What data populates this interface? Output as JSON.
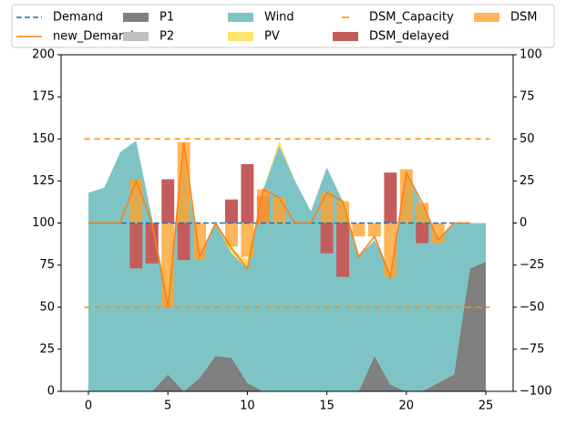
{
  "chart_data": {
    "type": "combo",
    "x": [
      0,
      1,
      2,
      3,
      4,
      5,
      6,
      7,
      8,
      9,
      10,
      11,
      12,
      13,
      14,
      15,
      16,
      17,
      18,
      19,
      20,
      21,
      22,
      23,
      24,
      25
    ],
    "xlim": [
      -1.72,
      26.72
    ],
    "xticks": [
      0,
      5,
      10,
      15,
      20,
      25
    ],
    "ylim": [
      0,
      200
    ],
    "yticks": [
      0,
      25,
      50,
      75,
      100,
      125,
      150,
      175,
      200
    ],
    "y2lim": [
      -100,
      100
    ],
    "y2ticks": [
      {
        "value": -100,
        "label": "−100"
      },
      {
        "value": -75,
        "label": "−75"
      },
      {
        "value": -50,
        "label": "−50"
      },
      {
        "value": -25,
        "label": "−25"
      },
      0,
      25,
      50,
      75,
      100
    ],
    "legend": "top",
    "series": [
      {
        "name": "Demand",
        "type": "line",
        "dashed": true,
        "color": "#1f77b4",
        "values": [
          100,
          100,
          100,
          100,
          100,
          100,
          100,
          100,
          100,
          100,
          100,
          100,
          100,
          100,
          100,
          100,
          100,
          100,
          100,
          100,
          100,
          100,
          100,
          100,
          100,
          null
        ]
      },
      {
        "name": "new_Demand",
        "type": "line",
        "color": "#ff7f0e",
        "values": [
          100,
          100,
          100,
          125,
          100,
          50,
          148,
          80,
          100,
          85,
          73,
          120,
          115,
          100,
          100,
          118,
          113,
          80,
          92,
          68,
          130,
          112,
          90,
          100,
          100,
          null
        ]
      },
      {
        "name": "P1",
        "type": "area",
        "color": "#808080",
        "values": [
          0,
          0,
          0,
          0,
          0,
          10,
          0,
          8,
          21,
          20,
          5,
          0,
          0,
          0,
          0,
          0,
          0,
          0,
          21,
          4,
          0,
          0,
          5,
          10,
          73,
          77
        ]
      },
      {
        "name": "P2",
        "type": "area",
        "color": "#bfbfbf",
        "values": [
          0,
          0,
          0,
          0,
          0,
          0,
          0,
          0,
          0,
          0,
          0,
          0,
          0,
          0,
          0,
          0,
          0,
          0,
          0,
          0,
          0,
          0,
          0,
          0,
          0,
          0
        ]
      },
      {
        "name": "Wind",
        "type": "area",
        "color": "#7fc4c4",
        "values": [
          118,
          121,
          142,
          149,
          103,
          45,
          140,
          72,
          79,
          62,
          68,
          120,
          146,
          125,
          107,
          133,
          113,
          80,
          69,
          66,
          130,
          110,
          85,
          90,
          27,
          23
        ]
      },
      {
        "name": "PV",
        "type": "area",
        "color": "#fde36f",
        "values": [
          0,
          0,
          0,
          0,
          0,
          0,
          0,
          0,
          0,
          3,
          5,
          0,
          3,
          0,
          0,
          0,
          0,
          0,
          0,
          0,
          0,
          0,
          0,
          0,
          0,
          0
        ]
      },
      {
        "name": "DSM_Capacity",
        "type": "hline",
        "dashed": true,
        "color": "#ff8c00",
        "axis": "y2",
        "levels": [
          50,
          -50
        ]
      },
      {
        "name": "DSM_delayed",
        "type": "bar",
        "color": "#c45c5c",
        "axis": "y2",
        "values": [
          null,
          null,
          null,
          -27,
          -24,
          26,
          -22,
          null,
          null,
          14,
          35,
          16,
          null,
          null,
          null,
          -18,
          -32,
          null,
          null,
          30,
          null,
          -12,
          null,
          null,
          null,
          null
        ]
      },
      {
        "name": "DSM",
        "type": "bar",
        "color": "#ffa230",
        "opacity": 0.8,
        "axis": "y2",
        "values": [
          null,
          null,
          null,
          26,
          null,
          -50,
          48,
          -22,
          null,
          -14,
          -20,
          20,
          15,
          null,
          null,
          18,
          13,
          -8,
          -8,
          -32,
          32,
          12,
          -12,
          null,
          null,
          null
        ]
      }
    ]
  }
}
